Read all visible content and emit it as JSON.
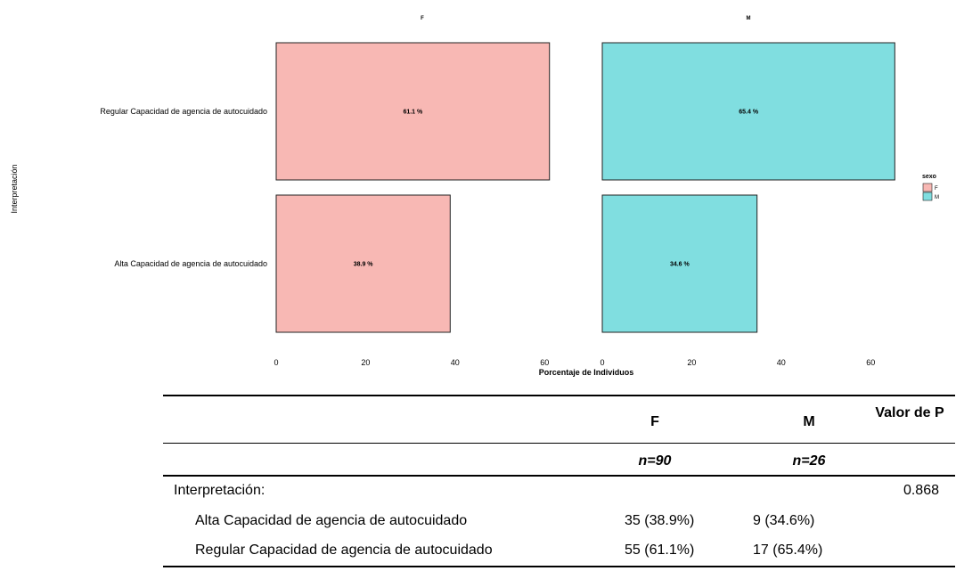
{
  "chart_data": {
    "type": "bar",
    "orientation": "horizontal",
    "facets": [
      "F",
      "M"
    ],
    "categories": [
      "Regular Capacidad de agencia de autocuidado",
      "Alta Capacidad de agencia de autocuidado"
    ],
    "series": [
      {
        "name": "F",
        "color": "#F8B8B4",
        "values": [
          61.1,
          38.9
        ],
        "labels": [
          "61.1 %",
          "38.9 %"
        ]
      },
      {
        "name": "M",
        "color": "#80DEE0",
        "values": [
          65.4,
          34.6
        ],
        "labels": [
          "65.4 %",
          "34.6 %"
        ]
      }
    ],
    "xlabel": "Porcentaje de Individuos",
    "ylabel": "Interpretación",
    "xticks": [
      "0",
      "20",
      "40",
      "60"
    ],
    "xlim": [
      0,
      66
    ],
    "legend": {
      "title": "sexo",
      "entries": [
        "F",
        "M"
      ],
      "position": "right"
    },
    "grid": false
  },
  "table": {
    "headers": [
      "",
      "F",
      "M",
      "Valor de P"
    ],
    "n_row": [
      "",
      "n=90",
      "n=26",
      ""
    ],
    "section_label": "Interpretación:",
    "p_value": "0.868",
    "rows": [
      {
        "label": "Alta Capacidad de agencia de autocuidado",
        "f": "35 (38.9%)",
        "m": "9 (34.6%)"
      },
      {
        "label": "Regular Capacidad de agencia de autocuidado",
        "f": "55 (61.1%)",
        "m": "17 (65.4%)"
      }
    ]
  }
}
